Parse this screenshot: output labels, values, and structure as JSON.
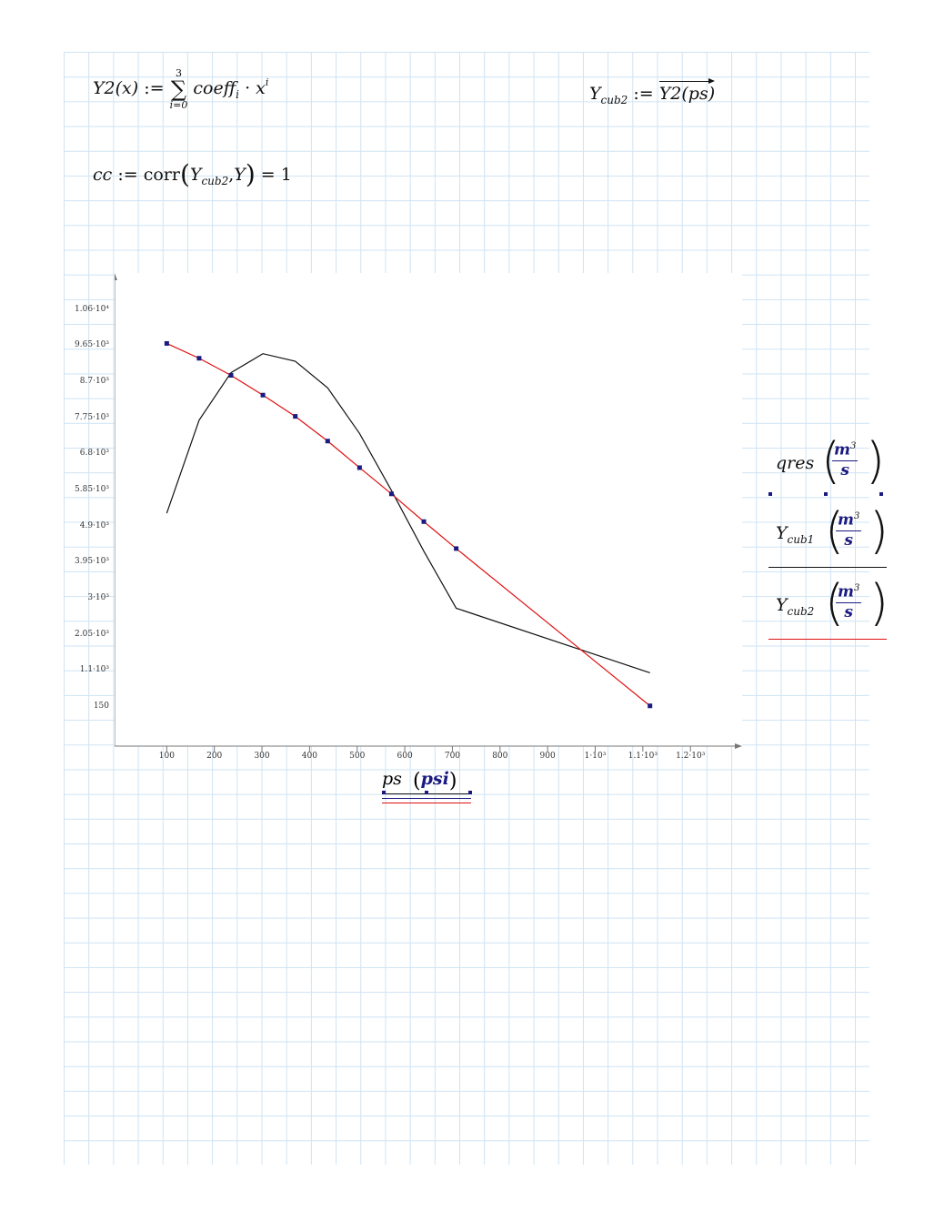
{
  "worksheet": {
    "eq1": {
      "lhs": "Y2(x)",
      "assign": ":=",
      "sum_upper": "3",
      "sum_lower": "i=0",
      "term": "coeff",
      "term_sub": "i",
      "dot": "·",
      "var": "x",
      "var_sup": "i"
    },
    "eq2": {
      "lhs": "Y",
      "lhs_sub": "cub2",
      "assign": ":=",
      "rhs": "Y2(ps)"
    },
    "eq3": {
      "lhs": "cc",
      "assign": ":=",
      "func": "corr",
      "arg1": "Y",
      "arg1_sub": "cub2",
      "arg2": "Y",
      "result": "= 1"
    }
  },
  "legend": {
    "items": [
      {
        "label": "qres",
        "sub": "",
        "unit_num": "m",
        "unit_sup": "3",
        "unit_den": "s",
        "line_color": "#1a1a80"
      },
      {
        "label": "Y",
        "sub": "cub1",
        "unit_num": "m",
        "unit_sup": "3",
        "unit_den": "s",
        "line_color": "#111111"
      },
      {
        "label": "Y",
        "sub": "cub2",
        "unit_num": "m",
        "unit_sup": "3",
        "unit_den": "s",
        "line_color": "#e01010"
      }
    ]
  },
  "xaxis": {
    "var": "ps",
    "unit": "psi"
  },
  "chart_data": {
    "type": "line",
    "xlabel": "ps (psi)",
    "ylabel": "",
    "xlim": [
      0,
      1300
    ],
    "ylim": [
      -800,
      11500
    ],
    "x_ticks": [
      100,
      200,
      300,
      400,
      500,
      600,
      700,
      800,
      900,
      1000,
      1100,
      1200
    ],
    "x_tick_labels": [
      "100",
      "200",
      "300",
      "400",
      "500",
      "600",
      "700",
      "800",
      "900",
      "1·10³",
      "1.1·10³",
      "1.2·10³"
    ],
    "y_ticks": [
      150,
      1100,
      2050,
      3000,
      3950,
      4900,
      5850,
      6800,
      7750,
      8700,
      9650,
      10600
    ],
    "y_tick_labels": [
      "150",
      "1.1·10³",
      "2.05·10³",
      "3·10³",
      "3.95·10³",
      "4.9·10³",
      "5.85·10³",
      "6.8·10³",
      "7.75·10³",
      "8.7·10³",
      "9.65·10³",
      "1.06·10⁴"
    ],
    "series": [
      {
        "label_ref": "qres",
        "color": "#1a1a80",
        "style": "markers",
        "x": [
          100,
          168,
          235,
          302,
          370,
          438,
          505,
          572,
          640,
          708,
          1115
        ],
        "y": [
          9720,
          9330,
          8880,
          8360,
          7800,
          7150,
          6450,
          5760,
          5030,
          4320,
          180
        ]
      },
      {
        "label_ref": "Y cub1",
        "color": "#111111",
        "style": "line",
        "x": [
          100,
          168,
          235,
          302,
          370,
          438,
          505,
          572,
          640,
          708,
          1115
        ],
        "y": [
          5250,
          7700,
          8950,
          9450,
          9250,
          8550,
          7350,
          5850,
          4250,
          2750,
          1050
        ]
      },
      {
        "label_ref": "Y cub2",
        "color": "#e01010",
        "style": "line",
        "x": [
          100,
          168,
          235,
          302,
          370,
          438,
          505,
          572,
          640,
          708,
          1115
        ],
        "y": [
          9720,
          9330,
          8880,
          8360,
          7800,
          7150,
          6450,
          5760,
          5030,
          4320,
          180
        ]
      }
    ]
  }
}
